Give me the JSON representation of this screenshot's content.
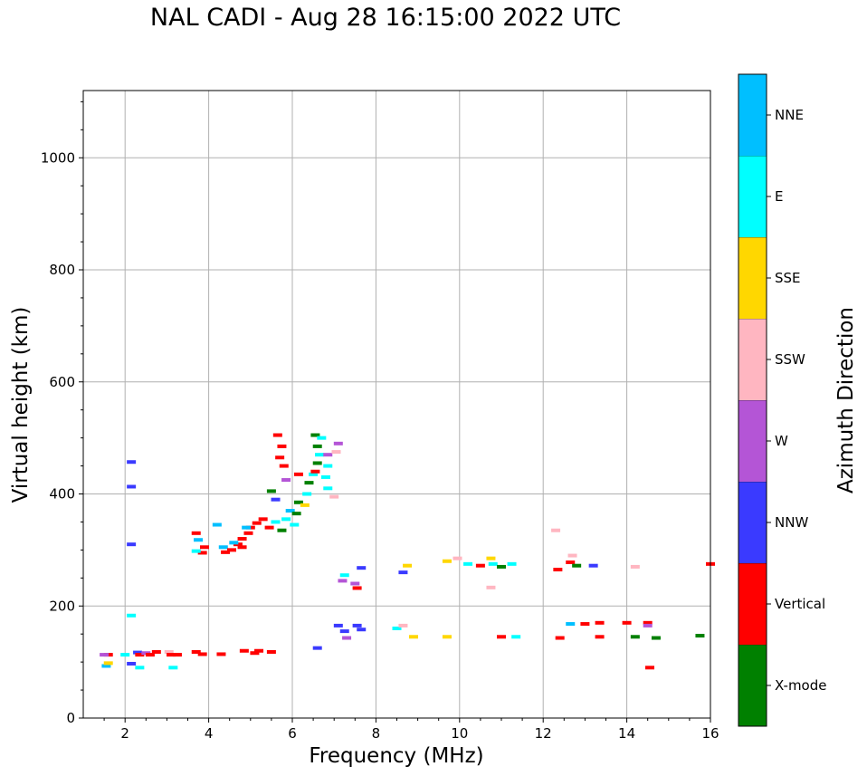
{
  "chart_data": {
    "type": "scatter",
    "title": "NAL CADI - Aug 28 16:15:00 2022 UTC",
    "xlabel": "Frequency (MHz)",
    "ylabel": "Virtual height (km)",
    "xlim": [
      1,
      16
    ],
    "ylim": [
      0,
      1120
    ],
    "xticks": [
      2,
      4,
      6,
      8,
      10,
      12,
      14,
      16
    ],
    "yticks": [
      0,
      200,
      400,
      600,
      800,
      1000
    ],
    "grid": true,
    "colorbar": {
      "label": "Azimuth Direction",
      "categories": [
        {
          "name": "X-mode",
          "color": "#008000"
        },
        {
          "name": "Vertical",
          "color": "#ff0000"
        },
        {
          "name": "NNW",
          "color": "#3a3aff"
        },
        {
          "name": "W",
          "color": "#b455d6"
        },
        {
          "name": "SSW",
          "color": "#ffb6c1"
        },
        {
          "name": "SSE",
          "color": "#ffd700"
        },
        {
          "name": "E",
          "color": "#00ffff"
        },
        {
          "name": "NNE",
          "color": "#00bfff"
        }
      ]
    },
    "points": [
      {
        "f": 1.55,
        "h": 93,
        "c": "NNE"
      },
      {
        "f": 1.6,
        "h": 98,
        "c": "SSE"
      },
      {
        "f": 1.6,
        "h": 113,
        "c": "Vertical"
      },
      {
        "f": 1.5,
        "h": 113,
        "c": "W"
      },
      {
        "f": 2.0,
        "h": 113,
        "c": "E"
      },
      {
        "f": 2.3,
        "h": 117,
        "c": "NNW"
      },
      {
        "f": 2.35,
        "h": 113,
        "c": "Vertical"
      },
      {
        "f": 2.5,
        "h": 116,
        "c": "W"
      },
      {
        "f": 2.6,
        "h": 113,
        "c": "Vertical"
      },
      {
        "f": 2.75,
        "h": 118,
        "c": "Vertical"
      },
      {
        "f": 2.35,
        "h": 90,
        "c": "E"
      },
      {
        "f": 3.05,
        "h": 118,
        "c": "SSW"
      },
      {
        "f": 3.1,
        "h": 113,
        "c": "Vertical"
      },
      {
        "f": 3.25,
        "h": 113,
        "c": "Vertical"
      },
      {
        "f": 3.15,
        "h": 90,
        "c": "E"
      },
      {
        "f": 3.7,
        "h": 118,
        "c": "Vertical"
      },
      {
        "f": 3.85,
        "h": 114,
        "c": "Vertical"
      },
      {
        "f": 4.3,
        "h": 114,
        "c": "Vertical"
      },
      {
        "f": 4.85,
        "h": 120,
        "c": "Vertical"
      },
      {
        "f": 5.2,
        "h": 120,
        "c": "Vertical"
      },
      {
        "f": 5.5,
        "h": 118,
        "c": "Vertical"
      },
      {
        "f": 5.1,
        "h": 116,
        "c": "Vertical"
      },
      {
        "f": 2.15,
        "h": 97,
        "c": "NNW"
      },
      {
        "f": 2.15,
        "h": 183,
        "c": "E"
      },
      {
        "f": 2.15,
        "h": 310,
        "c": "NNW"
      },
      {
        "f": 2.15,
        "h": 413,
        "c": "NNW"
      },
      {
        "f": 2.15,
        "h": 457,
        "c": "NNW"
      },
      {
        "f": 3.7,
        "h": 330,
        "c": "Vertical"
      },
      {
        "f": 3.75,
        "h": 318,
        "c": "NNE"
      },
      {
        "f": 3.9,
        "h": 305,
        "c": "Vertical"
      },
      {
        "f": 3.85,
        "h": 295,
        "c": "Vertical"
      },
      {
        "f": 3.7,
        "h": 298,
        "c": "E"
      },
      {
        "f": 4.2,
        "h": 345,
        "c": "NNE"
      },
      {
        "f": 4.35,
        "h": 305,
        "c": "NNE"
      },
      {
        "f": 4.4,
        "h": 296,
        "c": "Vertical"
      },
      {
        "f": 4.55,
        "h": 300,
        "c": "Vertical"
      },
      {
        "f": 4.7,
        "h": 310,
        "c": "Vertical"
      },
      {
        "f": 4.8,
        "h": 320,
        "c": "Vertical"
      },
      {
        "f": 4.95,
        "h": 330,
        "c": "Vertical"
      },
      {
        "f": 4.6,
        "h": 313,
        "c": "NNE"
      },
      {
        "f": 4.8,
        "h": 305,
        "c": "Vertical"
      },
      {
        "f": 5.0,
        "h": 340,
        "c": "Vertical"
      },
      {
        "f": 5.15,
        "h": 348,
        "c": "Vertical"
      },
      {
        "f": 4.9,
        "h": 340,
        "c": "NNE"
      },
      {
        "f": 5.3,
        "h": 355,
        "c": "Vertical"
      },
      {
        "f": 5.45,
        "h": 340,
        "c": "Vertical"
      },
      {
        "f": 5.6,
        "h": 350,
        "c": "E"
      },
      {
        "f": 5.75,
        "h": 335,
        "c": "X-mode"
      },
      {
        "f": 5.85,
        "h": 355,
        "c": "E"
      },
      {
        "f": 5.95,
        "h": 370,
        "c": "NNE"
      },
      {
        "f": 6.1,
        "h": 365,
        "c": "X-mode"
      },
      {
        "f": 6.05,
        "h": 345,
        "c": "E"
      },
      {
        "f": 6.15,
        "h": 385,
        "c": "X-mode"
      },
      {
        "f": 6.3,
        "h": 380,
        "c": "SSE"
      },
      {
        "f": 6.35,
        "h": 400,
        "c": "E"
      },
      {
        "f": 6.4,
        "h": 420,
        "c": "X-mode"
      },
      {
        "f": 6.5,
        "h": 435,
        "c": "E"
      },
      {
        "f": 6.55,
        "h": 440,
        "c": "Vertical"
      },
      {
        "f": 6.6,
        "h": 455,
        "c": "X-mode"
      },
      {
        "f": 6.65,
        "h": 470,
        "c": "E"
      },
      {
        "f": 6.6,
        "h": 485,
        "c": "X-mode"
      },
      {
        "f": 6.55,
        "h": 505,
        "c": "X-mode"
      },
      {
        "f": 6.7,
        "h": 500,
        "c": "E"
      },
      {
        "f": 6.85,
        "h": 470,
        "c": "W"
      },
      {
        "f": 6.85,
        "h": 450,
        "c": "E"
      },
      {
        "f": 6.8,
        "h": 430,
        "c": "E"
      },
      {
        "f": 6.85,
        "h": 410,
        "c": "E"
      },
      {
        "f": 5.65,
        "h": 505,
        "c": "Vertical"
      },
      {
        "f": 5.75,
        "h": 485,
        "c": "Vertical"
      },
      {
        "f": 5.7,
        "h": 465,
        "c": "Vertical"
      },
      {
        "f": 5.8,
        "h": 450,
        "c": "Vertical"
      },
      {
        "f": 5.85,
        "h": 425,
        "c": "W"
      },
      {
        "f": 5.5,
        "h": 405,
        "c": "X-mode"
      },
      {
        "f": 5.6,
        "h": 390,
        "c": "NNW"
      },
      {
        "f": 6.15,
        "h": 435,
        "c": "Vertical"
      },
      {
        "f": 7.1,
        "h": 490,
        "c": "W"
      },
      {
        "f": 7.05,
        "h": 475,
        "c": "SSW"
      },
      {
        "f": 7.0,
        "h": 395,
        "c": "SSW"
      },
      {
        "f": 7.2,
        "h": 245,
        "c": "W"
      },
      {
        "f": 7.5,
        "h": 240,
        "c": "W"
      },
      {
        "f": 7.55,
        "h": 232,
        "c": "Vertical"
      },
      {
        "f": 7.25,
        "h": 255,
        "c": "E"
      },
      {
        "f": 7.65,
        "h": 268,
        "c": "NNW"
      },
      {
        "f": 8.65,
        "h": 260,
        "c": "NNW"
      },
      {
        "f": 8.75,
        "h": 272,
        "c": "SSE"
      },
      {
        "f": 9.7,
        "h": 280,
        "c": "SSE"
      },
      {
        "f": 9.95,
        "h": 285,
        "c": "SSW"
      },
      {
        "f": 10.2,
        "h": 275,
        "c": "E"
      },
      {
        "f": 10.5,
        "h": 272,
        "c": "Vertical"
      },
      {
        "f": 10.75,
        "h": 285,
        "c": "SSE"
      },
      {
        "f": 10.8,
        "h": 275,
        "c": "E"
      },
      {
        "f": 11.0,
        "h": 270,
        "c": "X-mode"
      },
      {
        "f": 11.25,
        "h": 275,
        "c": "E"
      },
      {
        "f": 10.75,
        "h": 233,
        "c": "SSW"
      },
      {
        "f": 12.3,
        "h": 335,
        "c": "SSW"
      },
      {
        "f": 12.35,
        "h": 265,
        "c": "Vertical"
      },
      {
        "f": 12.65,
        "h": 278,
        "c": "Vertical"
      },
      {
        "f": 12.7,
        "h": 290,
        "c": "SSW"
      },
      {
        "f": 12.8,
        "h": 272,
        "c": "X-mode"
      },
      {
        "f": 13.2,
        "h": 272,
        "c": "NNW"
      },
      {
        "f": 14.2,
        "h": 270,
        "c": "SSW"
      },
      {
        "f": 16.0,
        "h": 275,
        "c": "Vertical"
      },
      {
        "f": 7.1,
        "h": 165,
        "c": "NNW"
      },
      {
        "f": 7.25,
        "h": 155,
        "c": "NNW"
      },
      {
        "f": 7.3,
        "h": 143,
        "c": "W"
      },
      {
        "f": 7.55,
        "h": 165,
        "c": "NNW"
      },
      {
        "f": 7.65,
        "h": 158,
        "c": "NNW"
      },
      {
        "f": 8.5,
        "h": 160,
        "c": "E"
      },
      {
        "f": 8.65,
        "h": 165,
        "c": "SSW"
      },
      {
        "f": 8.9,
        "h": 145,
        "c": "SSE"
      },
      {
        "f": 9.7,
        "h": 145,
        "c": "SSE"
      },
      {
        "f": 11.0,
        "h": 145,
        "c": "Vertical"
      },
      {
        "f": 11.35,
        "h": 145,
        "c": "E"
      },
      {
        "f": 6.6,
        "h": 125,
        "c": "NNW"
      },
      {
        "f": 12.4,
        "h": 143,
        "c": "Vertical"
      },
      {
        "f": 12.65,
        "h": 168,
        "c": "NNE"
      },
      {
        "f": 13.0,
        "h": 168,
        "c": "Vertical"
      },
      {
        "f": 13.35,
        "h": 145,
        "c": "Vertical"
      },
      {
        "f": 13.35,
        "h": 170,
        "c": "Vertical"
      },
      {
        "f": 14.0,
        "h": 170,
        "c": "Vertical"
      },
      {
        "f": 14.5,
        "h": 170,
        "c": "Vertical"
      },
      {
        "f": 14.5,
        "h": 165,
        "c": "W"
      },
      {
        "f": 14.2,
        "h": 145,
        "c": "X-mode"
      },
      {
        "f": 14.7,
        "h": 143,
        "c": "X-mode"
      },
      {
        "f": 15.75,
        "h": 147,
        "c": "X-mode"
      },
      {
        "f": 14.55,
        "h": 90,
        "c": "Vertical"
      }
    ]
  }
}
